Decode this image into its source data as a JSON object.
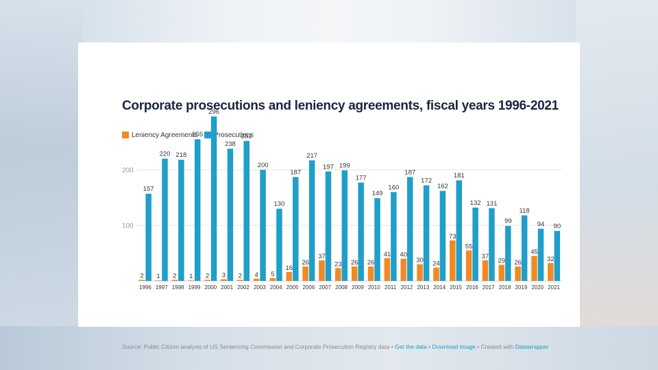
{
  "colors": {
    "leniency": "#f08a24",
    "prosecutions": "#1f9fc9",
    "title": "#1b2440"
  },
  "title": "Corporate prosecutions and leniency agreements, fiscal years 1996-2021",
  "legend": {
    "leniency": "Leniency Agreements",
    "prosecutions": "Prosecutions"
  },
  "footer": {
    "source": "Source: Public Citizen analysis of US Sentencing Commission and Corporate Prosecution Registry data",
    "sep1": " • ",
    "get_data": "Get the data",
    "sep2": " • ",
    "download": "Download image",
    "sep3": " • Created with ",
    "datawrapper": "Datawrapper"
  },
  "chart_data": {
    "type": "bar",
    "title": "Corporate prosecutions and leniency agreements, fiscal years 1996-2021",
    "categories": [
      "1996",
      "1997",
      "1998",
      "1999",
      "2000",
      "2001",
      "2002",
      "2003",
      "2004",
      "2005",
      "2006",
      "2007",
      "2008",
      "2009",
      "2010",
      "2011",
      "2012",
      "2013",
      "2014",
      "2015",
      "2016",
      "2017",
      "2018",
      "2019",
      "2020",
      "2021"
    ],
    "series": [
      {
        "name": "Leniency Agreements",
        "values": [
          2,
          1,
          2,
          1,
          2,
          3,
          2,
          4,
          5,
          16,
          26,
          37,
          23,
          26,
          26,
          41,
          40,
          30,
          24,
          73,
          55,
          37,
          29,
          26,
          45,
          32
        ]
      },
      {
        "name": "Prosecutions",
        "values": [
          157,
          220,
          218,
          255,
          296,
          238,
          252,
          200,
          130,
          187,
          217,
          197,
          199,
          177,
          149,
          160,
          187,
          172,
          162,
          181,
          132,
          131,
          99,
          118,
          94,
          90
        ]
      }
    ],
    "yticks": [
      100,
      200
    ],
    "ylim": [
      0,
      296
    ],
    "legend_position": "top-left",
    "grid": true
  }
}
